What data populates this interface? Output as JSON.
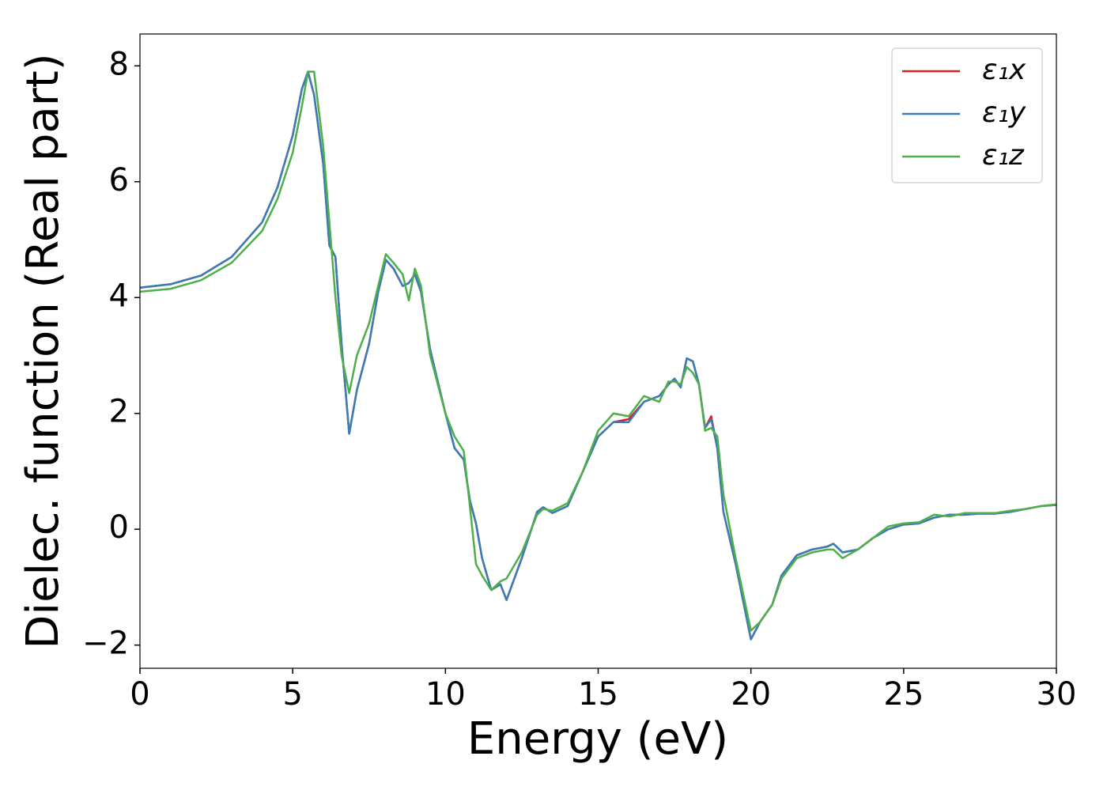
{
  "chart_data": {
    "type": "line",
    "xlabel": "Energy (eV)",
    "ylabel": "Dielec. function (Real part)",
    "x": [
      0,
      1,
      2,
      3,
      4,
      4.5,
      5,
      5.3,
      5.5,
      5.7,
      6,
      6.2,
      6.4,
      6.6,
      6.85,
      7.1,
      7.5,
      7.8,
      8.05,
      8.3,
      8.6,
      8.8,
      9.0,
      9.2,
      9.5,
      10,
      10.3,
      10.6,
      10.8,
      11,
      11.2,
      11.5,
      11.8,
      12,
      12.5,
      13,
      13.2,
      13.5,
      14,
      14.5,
      15,
      15.5,
      16,
      16.5,
      17,
      17.3,
      17.5,
      17.7,
      17.9,
      18.1,
      18.3,
      18.5,
      18.7,
      18.9,
      19.1,
      19.5,
      20,
      20.3,
      20.7,
      21,
      21.5,
      22,
      22.5,
      22.7,
      23,
      23.5,
      24,
      24.5,
      25,
      25.5,
      26,
      26.5,
      27,
      27.5,
      28,
      28.5,
      29,
      29.5,
      30
    ],
    "series": [
      {
        "name": "ε₁x",
        "color": "#e41a1c",
        "values": [
          4.17,
          4.23,
          4.38,
          4.7,
          5.3,
          5.9,
          6.8,
          7.6,
          7.9,
          7.5,
          6.3,
          4.9,
          4.7,
          3.2,
          1.65,
          2.4,
          3.2,
          4.1,
          4.65,
          4.5,
          4.2,
          4.25,
          4.4,
          4.1,
          3.1,
          2.0,
          1.4,
          1.2,
          0.5,
          0.1,
          -0.5,
          -1.05,
          -0.95,
          -1.22,
          -0.5,
          0.3,
          0.38,
          0.28,
          0.4,
          1.0,
          1.6,
          1.85,
          1.9,
          2.2,
          2.3,
          2.5,
          2.6,
          2.45,
          2.95,
          2.9,
          2.5,
          1.75,
          1.95,
          1.4,
          0.3,
          -0.6,
          -1.9,
          -1.6,
          -1.3,
          -0.8,
          -0.45,
          -0.35,
          -0.3,
          -0.25,
          -0.4,
          -0.35,
          -0.15,
          0.0,
          0.08,
          0.1,
          0.2,
          0.25,
          0.25,
          0.27,
          0.27,
          0.3,
          0.35,
          0.4,
          0.42
        ]
      },
      {
        "name": "ε₁y",
        "color": "#377eb8",
        "values": [
          4.17,
          4.23,
          4.38,
          4.7,
          5.3,
          5.9,
          6.8,
          7.6,
          7.9,
          7.5,
          6.3,
          4.9,
          4.7,
          3.2,
          1.65,
          2.4,
          3.2,
          4.1,
          4.65,
          4.5,
          4.2,
          4.25,
          4.4,
          4.1,
          3.1,
          2.0,
          1.4,
          1.2,
          0.5,
          0.1,
          -0.5,
          -1.05,
          -0.95,
          -1.22,
          -0.5,
          0.3,
          0.38,
          0.28,
          0.4,
          1.0,
          1.6,
          1.85,
          1.85,
          2.2,
          2.3,
          2.5,
          2.6,
          2.45,
          2.95,
          2.9,
          2.5,
          1.75,
          1.9,
          1.4,
          0.3,
          -0.6,
          -1.9,
          -1.6,
          -1.3,
          -0.8,
          -0.45,
          -0.35,
          -0.3,
          -0.25,
          -0.4,
          -0.35,
          -0.15,
          0.0,
          0.08,
          0.1,
          0.2,
          0.25,
          0.25,
          0.27,
          0.27,
          0.3,
          0.35,
          0.4,
          0.42
        ]
      },
      {
        "name": "ε₁z",
        "color": "#4daf4a",
        "values": [
          4.1,
          4.15,
          4.3,
          4.6,
          5.15,
          5.7,
          6.5,
          7.3,
          7.9,
          7.9,
          6.6,
          5.3,
          4.0,
          3.0,
          2.35,
          3.0,
          3.55,
          4.2,
          4.75,
          4.6,
          4.4,
          3.95,
          4.5,
          4.2,
          3.0,
          2.0,
          1.6,
          1.35,
          0.4,
          -0.6,
          -0.8,
          -1.05,
          -0.9,
          -0.85,
          -0.4,
          0.25,
          0.35,
          0.32,
          0.45,
          1.0,
          1.7,
          2.0,
          1.95,
          2.3,
          2.2,
          2.55,
          2.55,
          2.5,
          2.8,
          2.7,
          2.5,
          1.7,
          1.75,
          1.6,
          0.6,
          -0.5,
          -1.75,
          -1.6,
          -1.3,
          -0.85,
          -0.5,
          -0.4,
          -0.35,
          -0.35,
          -0.5,
          -0.35,
          -0.15,
          0.05,
          0.1,
          0.12,
          0.25,
          0.22,
          0.28,
          0.28,
          0.28,
          0.32,
          0.35,
          0.4,
          0.43
        ]
      }
    ],
    "xlim": [
      0,
      30
    ],
    "ylim": [
      -2.4,
      8.55
    ],
    "xticks": [
      0,
      5,
      10,
      15,
      20,
      25,
      30
    ],
    "yticks": [
      {
        "value": -2,
        "label": "−2"
      },
      0,
      2,
      4,
      6,
      8
    ],
    "legend": "upper right",
    "grid": false
  }
}
